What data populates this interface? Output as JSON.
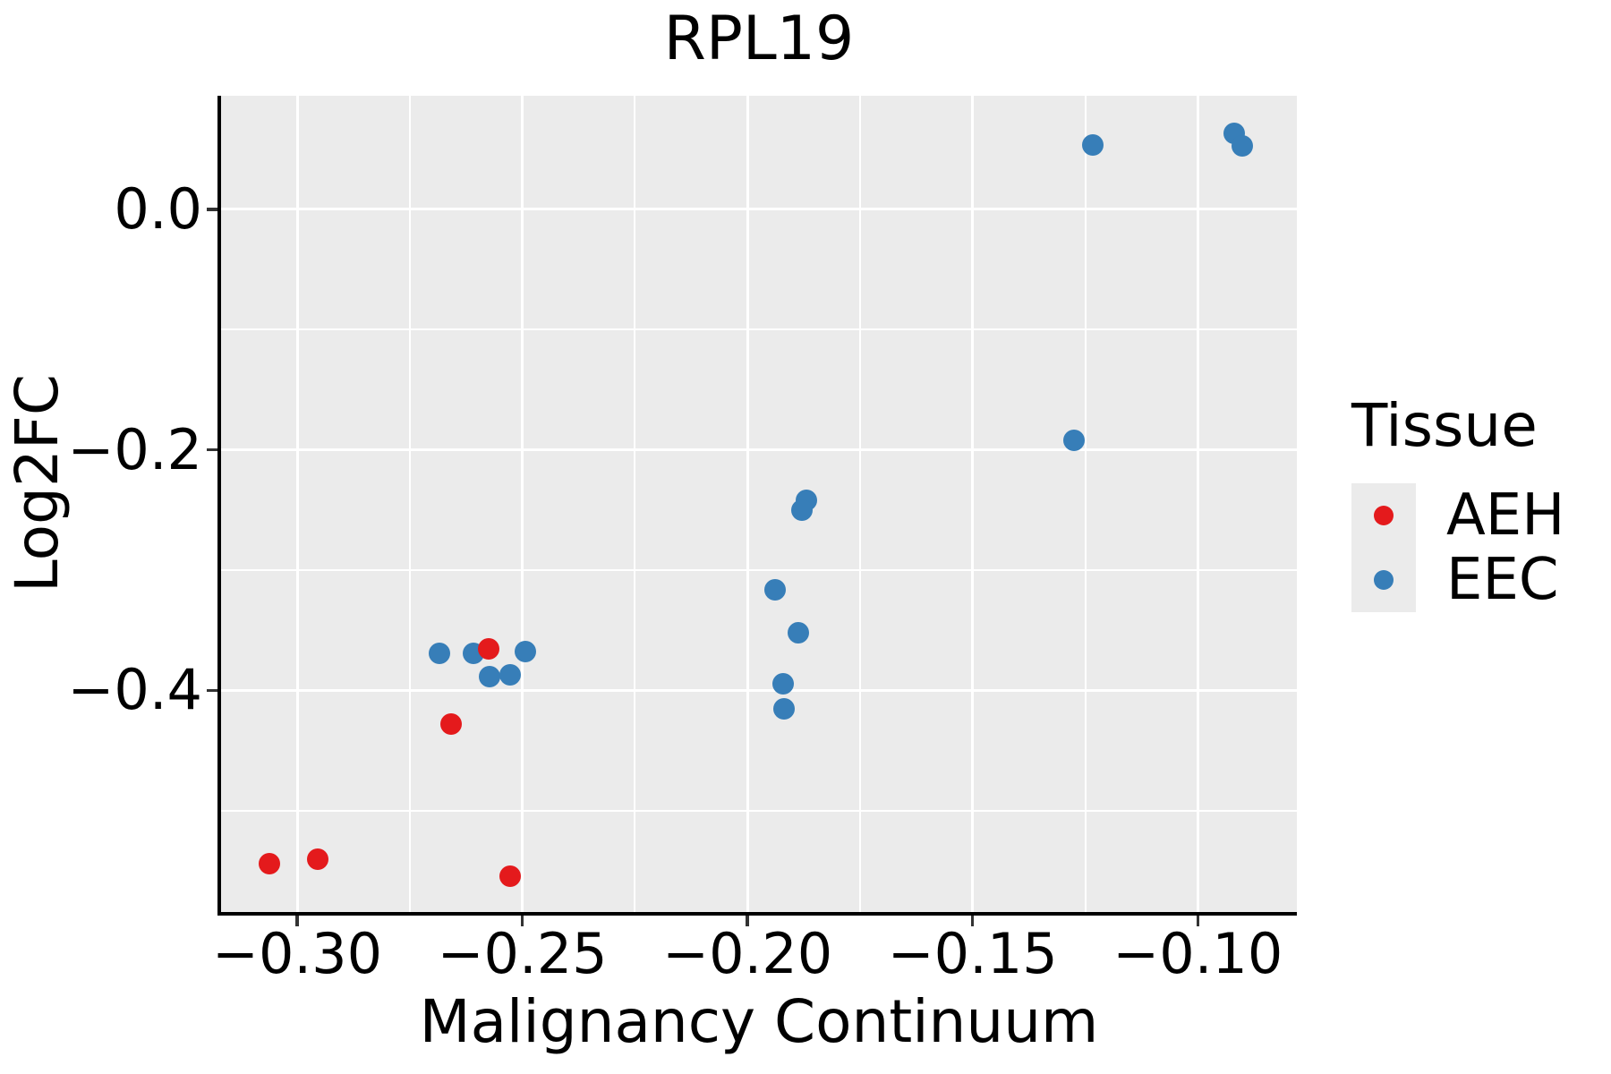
{
  "title": "RPL19",
  "legend": {
    "title": "Tissue",
    "entries": [
      {
        "label": "AEH",
        "color": "#e41a1c"
      },
      {
        "label": "EEC",
        "color": "#377eb8"
      }
    ]
  },
  "colors": {
    "panel_background": "#ebebeb",
    "gridline": "#ffffff",
    "axis_line": "#000000",
    "tick_mark": "#333333",
    "text": "#000000",
    "aeh_red": "#e41a1c",
    "eec_blue": "#377eb8"
  },
  "chart_data": {
    "type": "scatter",
    "title": "RPL19",
    "xlabel": "Malignancy Continuum",
    "ylabel": "Log2FC",
    "xlim": [
      -0.3169,
      -0.078
    ],
    "ylim": [
      -0.5843,
      0.0945
    ],
    "x_ticks": [
      -0.3,
      -0.25,
      -0.2,
      -0.15,
      -0.1
    ],
    "x_tick_labels": [
      "−0.30",
      "−0.25",
      "−0.20",
      "−0.15",
      "−0.10"
    ],
    "x_minor_ticks": [
      -0.275,
      -0.225,
      -0.175,
      -0.125
    ],
    "y_ticks": [
      0.0,
      -0.2,
      -0.4
    ],
    "y_tick_labels": [
      "0.0",
      "−0.2",
      "−0.4"
    ],
    "y_minor_ticks": [
      -0.1,
      -0.3,
      -0.5
    ],
    "grid": "white major+minor gridlines on gray panel",
    "legend_position": "right",
    "legend_title": "Tissue",
    "series": [
      {
        "name": "AEH",
        "color": "#e41a1c",
        "points": [
          [
            -0.3061,
            -0.5444
          ],
          [
            -0.2954,
            -0.5407
          ],
          [
            -0.2527,
            -0.5548
          ],
          [
            -0.2575,
            -0.3655
          ],
          [
            -0.2659,
            -0.428
          ]
        ]
      },
      {
        "name": "EEC",
        "color": "#377eb8",
        "points": [
          [
            -0.2685,
            -0.3694
          ],
          [
            -0.2609,
            -0.3694
          ],
          [
            -0.2572,
            -0.3885
          ],
          [
            -0.2528,
            -0.3868
          ],
          [
            -0.2493,
            -0.3679
          ],
          [
            -0.1869,
            -0.2417
          ],
          [
            -0.188,
            -0.2501
          ],
          [
            -0.1938,
            -0.3166
          ],
          [
            -0.1887,
            -0.3518
          ],
          [
            -0.1921,
            -0.3948
          ],
          [
            -0.1919,
            -0.4151
          ],
          [
            -0.1275,
            -0.1923
          ],
          [
            -0.1234,
            0.0538
          ],
          [
            -0.092,
            0.063
          ],
          [
            -0.0902,
            0.0531
          ]
        ]
      }
    ]
  }
}
